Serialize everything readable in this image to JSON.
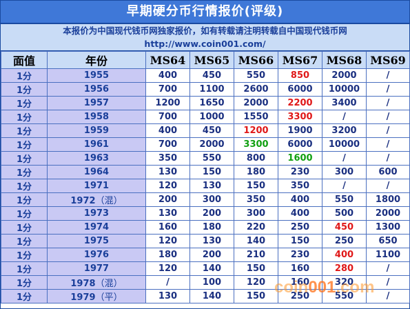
{
  "title": "早期硬分币行情报价(评级)",
  "notice": {
    "line1": "本报价为中国现代钱币网独家报价，如有转载请注明转载自中国现代钱币网",
    "line2": "http://www.coin001.com/"
  },
  "table": {
    "headers": [
      "面值",
      "年份",
      "MS64",
      "MS65",
      "MS66",
      "MS67",
      "MS68",
      "MS69"
    ],
    "rows": [
      {
        "denom": "1分",
        "year": "1955",
        "suffix": "",
        "values": [
          "400",
          "450",
          "550",
          "850",
          "2000",
          "/"
        ],
        "colors": [
          "",
          "",
          "",
          "red",
          "",
          ""
        ]
      },
      {
        "denom": "1分",
        "year": "1956",
        "suffix": "",
        "values": [
          "700",
          "1100",
          "2600",
          "6000",
          "10000",
          "/"
        ],
        "colors": [
          "",
          "",
          "",
          "",
          "",
          ""
        ]
      },
      {
        "denom": "1分",
        "year": "1957",
        "suffix": "",
        "values": [
          "1200",
          "1650",
          "2000",
          "2200",
          "3400",
          "/"
        ],
        "colors": [
          "",
          "",
          "",
          "red",
          "",
          ""
        ]
      },
      {
        "denom": "1分",
        "year": "1958",
        "suffix": "",
        "values": [
          "700",
          "1000",
          "1550",
          "3300",
          "/",
          "/"
        ],
        "colors": [
          "",
          "",
          "",
          "red",
          "",
          ""
        ]
      },
      {
        "denom": "1分",
        "year": "1959",
        "suffix": "",
        "values": [
          "400",
          "450",
          "1200",
          "1900",
          "3200",
          "/"
        ],
        "colors": [
          "",
          "",
          "red",
          "",
          "",
          ""
        ]
      },
      {
        "denom": "1分",
        "year": "1961",
        "suffix": "",
        "values": [
          "700",
          "2000",
          "3300",
          "6000",
          "10000",
          "/"
        ],
        "colors": [
          "",
          "",
          "green",
          "",
          "",
          ""
        ]
      },
      {
        "denom": "1分",
        "year": "1963",
        "suffix": "",
        "values": [
          "350",
          "550",
          "800",
          "1600",
          "/",
          "/"
        ],
        "colors": [
          "",
          "",
          "",
          "green",
          "",
          ""
        ]
      },
      {
        "denom": "1分",
        "year": "1964",
        "suffix": "",
        "values": [
          "130",
          "150",
          "180",
          "230",
          "300",
          "600"
        ],
        "colors": [
          "",
          "",
          "",
          "",
          "",
          ""
        ]
      },
      {
        "denom": "1分",
        "year": "1971",
        "suffix": "",
        "values": [
          "120",
          "130",
          "150",
          "350",
          "/",
          "/"
        ],
        "colors": [
          "",
          "",
          "",
          "",
          "",
          ""
        ]
      },
      {
        "denom": "1分",
        "year": "1972",
        "suffix": "（混）",
        "values": [
          "200",
          "300",
          "350",
          "400",
          "550",
          "1800"
        ],
        "colors": [
          "",
          "",
          "",
          "",
          "",
          ""
        ]
      },
      {
        "denom": "1分",
        "year": "1973",
        "suffix": "",
        "values": [
          "130",
          "200",
          "300",
          "400",
          "500",
          "2000"
        ],
        "colors": [
          "",
          "",
          "",
          "",
          "",
          ""
        ]
      },
      {
        "denom": "1分",
        "year": "1974",
        "suffix": "",
        "values": [
          "160",
          "180",
          "220",
          "250",
          "450",
          "1300"
        ],
        "colors": [
          "",
          "",
          "",
          "",
          "red",
          ""
        ]
      },
      {
        "denom": "1分",
        "year": "1975",
        "suffix": "",
        "values": [
          "120",
          "130",
          "140",
          "150",
          "250",
          "650"
        ],
        "colors": [
          "",
          "",
          "",
          "",
          "",
          ""
        ]
      },
      {
        "denom": "1分",
        "year": "1976",
        "suffix": "",
        "values": [
          "180",
          "200",
          "210",
          "230",
          "400",
          "1100"
        ],
        "colors": [
          "",
          "",
          "",
          "",
          "red",
          ""
        ]
      },
      {
        "denom": "1分",
        "year": "1977",
        "suffix": "",
        "values": [
          "120",
          "140",
          "150",
          "160",
          "280",
          "/"
        ],
        "colors": [
          "",
          "",
          "",
          "",
          "red",
          ""
        ]
      },
      {
        "denom": "1分",
        "year": "1978",
        "suffix": "（混）",
        "values": [
          "/",
          "100",
          "120",
          "160",
          "320",
          "/"
        ],
        "colors": [
          "",
          "",
          "",
          "",
          "",
          ""
        ]
      },
      {
        "denom": "1分",
        "year": "1979",
        "suffix": "（平）",
        "values": [
          "130",
          "140",
          "150",
          "250",
          "550",
          "/"
        ],
        "colors": [
          "",
          "",
          "",
          "",
          "",
          ""
        ]
      }
    ]
  },
  "watermark": {
    "prefix": "coin",
    "dot": "001",
    "suffix": ".com"
  }
}
